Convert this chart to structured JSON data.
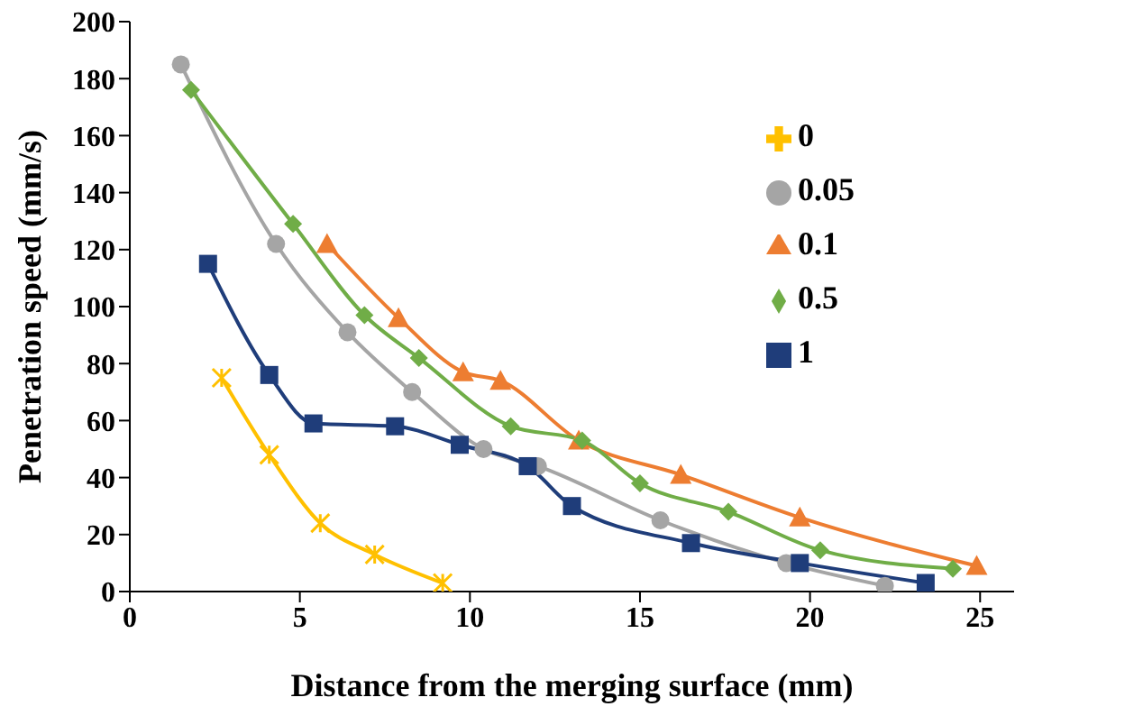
{
  "chart_data": {
    "type": "line",
    "xlabel": "Distance from the merging surface (mm)",
    "ylabel": "Penetration speed (mm/s)",
    "xlim": [
      0,
      26
    ],
    "xticks": [
      0,
      5,
      10,
      15,
      20,
      25
    ],
    "ylim": [
      0,
      200
    ],
    "yticks": [
      0,
      20,
      40,
      60,
      80,
      100,
      120,
      140,
      160,
      180,
      200
    ],
    "grid": false,
    "legend": "top right",
    "series": [
      {
        "name": "0",
        "color": "#ffc000",
        "marker": "cross",
        "x": [
          2.7,
          4.1,
          5.6,
          7.2,
          9.2
        ],
        "values": [
          75,
          48,
          24,
          13,
          3
        ]
      },
      {
        "name": "0.05",
        "color": "#a5a5a5",
        "marker": "circle",
        "x": [
          1.5,
          4.3,
          6.4,
          8.3,
          10.4,
          12,
          15.6,
          19.3,
          22.2
        ],
        "values": [
          185,
          122,
          91,
          70,
          50,
          44,
          25,
          10,
          2
        ]
      },
      {
        "name": "0.1",
        "color": "#ed7d31",
        "marker": "triangle",
        "x": [
          5.8,
          7.9,
          9.8,
          10.9,
          13.2,
          16.2,
          19.7,
          24.9
        ],
        "values": [
          122,
          96,
          77,
          74,
          53,
          41,
          26,
          9
        ]
      },
      {
        "name": "0.5",
        "color": "#70ad47",
        "marker": "diamond",
        "x": [
          1.8,
          4.8,
          6.9,
          8.5,
          11.2,
          13.3,
          15,
          17.6,
          20.3,
          24.2
        ],
        "values": [
          176,
          129,
          97,
          82,
          58,
          53,
          38,
          28,
          14.5,
          8
        ]
      },
      {
        "name": "1",
        "color": "#1f3d7a",
        "marker": "square",
        "x": [
          2.3,
          4.1,
          5.4,
          7.8,
          9.7,
          11.7,
          13,
          16.5,
          19.7,
          23.4
        ],
        "values": [
          115,
          76,
          59,
          58,
          51.5,
          44,
          30,
          17,
          10,
          3
        ]
      }
    ]
  }
}
